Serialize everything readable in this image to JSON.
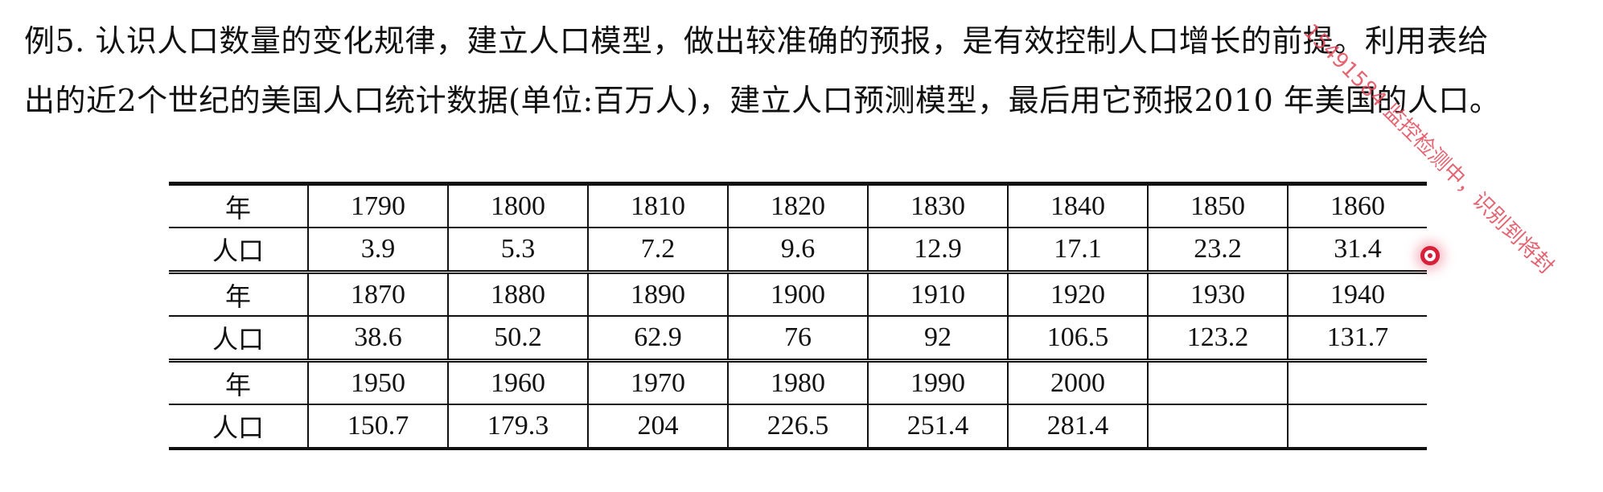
{
  "paragraph": {
    "line1": "例5. 认识人口数量的变化规律，建立人口模型，做出较准确的预报，是有效控制人口增长的前提。利用表给",
    "line2": "出的近2个世纪的美国人口统计数据(单位:百万人)，建立人口预测模型，最后用它预报2010 年美国的人口。"
  },
  "table": {
    "row_labels": {
      "year": "年",
      "population": "人口"
    },
    "blocks": [
      {
        "years": [
          "1790",
          "1800",
          "1810",
          "1820",
          "1830",
          "1840",
          "1850",
          "1860"
        ],
        "population": [
          "3.9",
          "5.3",
          "7.2",
          "9.6",
          "12.9",
          "17.1",
          "23.2",
          "31.4"
        ]
      },
      {
        "years": [
          "1870",
          "1880",
          "1890",
          "1900",
          "1910",
          "1920",
          "1930",
          "1940"
        ],
        "population": [
          "38.6",
          "50.2",
          "62.9",
          "76",
          "92",
          "106.5",
          "123.2",
          "131.7"
        ]
      },
      {
        "years": [
          "1950",
          "1960",
          "1970",
          "1980",
          "1990",
          "2000",
          "",
          ""
        ],
        "population": [
          "150.7",
          "179.3",
          "204",
          "226.5",
          "251.4",
          "281.4",
          "",
          ""
        ]
      }
    ]
  },
  "watermark": {
    "text": "15491584 监控检测中，识别到将封",
    "color": "#e04a5a"
  },
  "cursor": {
    "color": "#d8203b"
  }
}
